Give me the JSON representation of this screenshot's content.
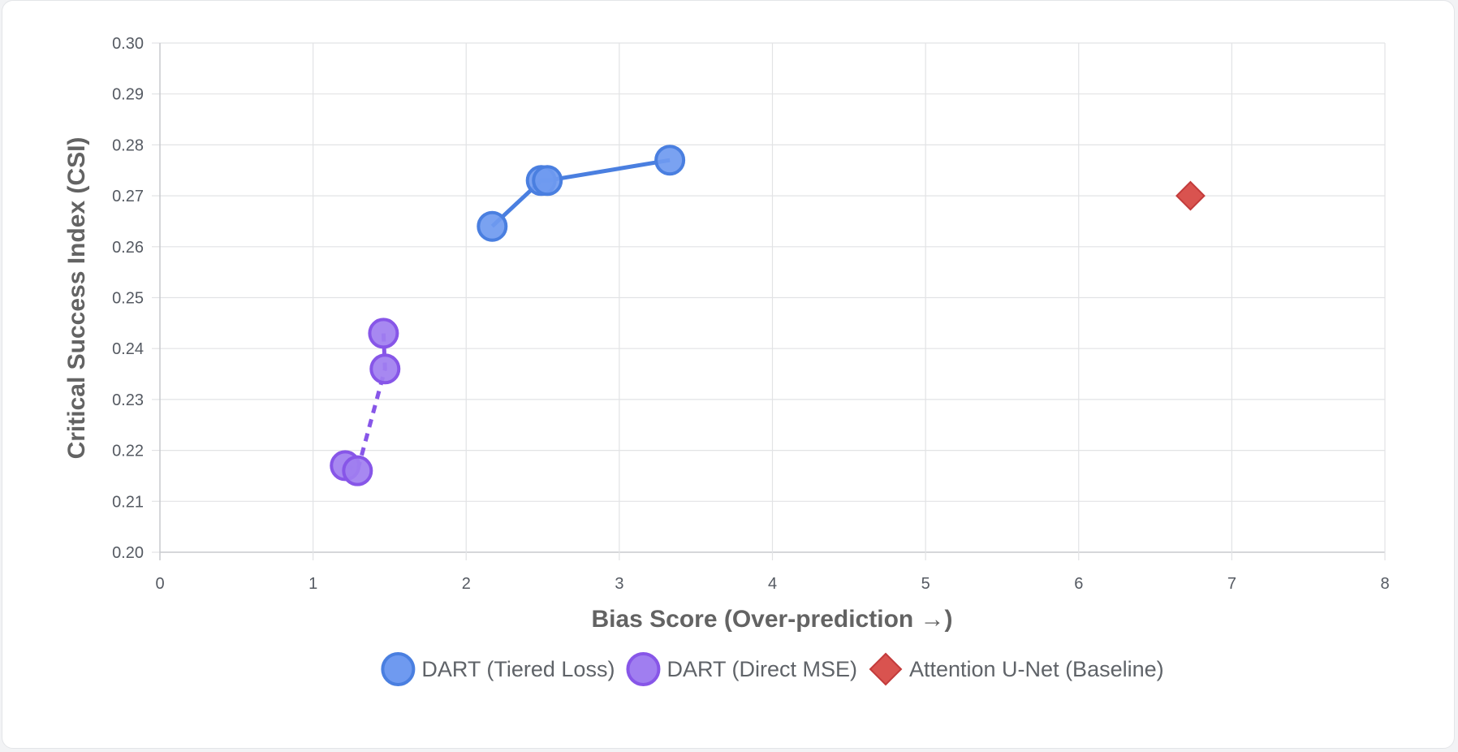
{
  "chart_data": {
    "type": "scatter",
    "title": "",
    "xlabel": "Bias Score (Over-prediction →)",
    "ylabel": "Critical Success Index (CSI)",
    "xlim": [
      0,
      8
    ],
    "ylim": [
      0.2,
      0.3
    ],
    "x_ticks": [
      "0",
      "1",
      "2",
      "3",
      "4",
      "5",
      "6",
      "7",
      "8"
    ],
    "y_ticks": [
      "0.20",
      "0.21",
      "0.22",
      "0.23",
      "0.24",
      "0.25",
      "0.26",
      "0.27",
      "0.28",
      "0.29",
      "0.30"
    ],
    "grid": true,
    "legend_position": "bottom",
    "series": [
      {
        "name": "DART (Tiered Loss)",
        "marker": "circle",
        "line": "solid",
        "color": "#4a7fe0",
        "fill": "#6f9af0",
        "points": [
          {
            "x": 2.17,
            "y": 0.264
          },
          {
            "x": 2.49,
            "y": 0.273
          },
          {
            "x": 2.53,
            "y": 0.273
          },
          {
            "x": 3.33,
            "y": 0.277
          }
        ]
      },
      {
        "name": "DART (Direct MSE)",
        "marker": "circle",
        "line": "dashed",
        "color": "#8756e8",
        "fill": "#a07ef0",
        "points": [
          {
            "x": 1.21,
            "y": 0.217
          },
          {
            "x": 1.29,
            "y": 0.216
          },
          {
            "x": 1.47,
            "y": 0.236
          },
          {
            "x": 1.46,
            "y": 0.243
          }
        ]
      },
      {
        "name": "Attention U-Net (Baseline)",
        "marker": "diamond",
        "line": "none",
        "color": "#c33b3b",
        "fill": "#d9534f",
        "points": [
          {
            "x": 6.73,
            "y": 0.27
          }
        ]
      }
    ]
  }
}
